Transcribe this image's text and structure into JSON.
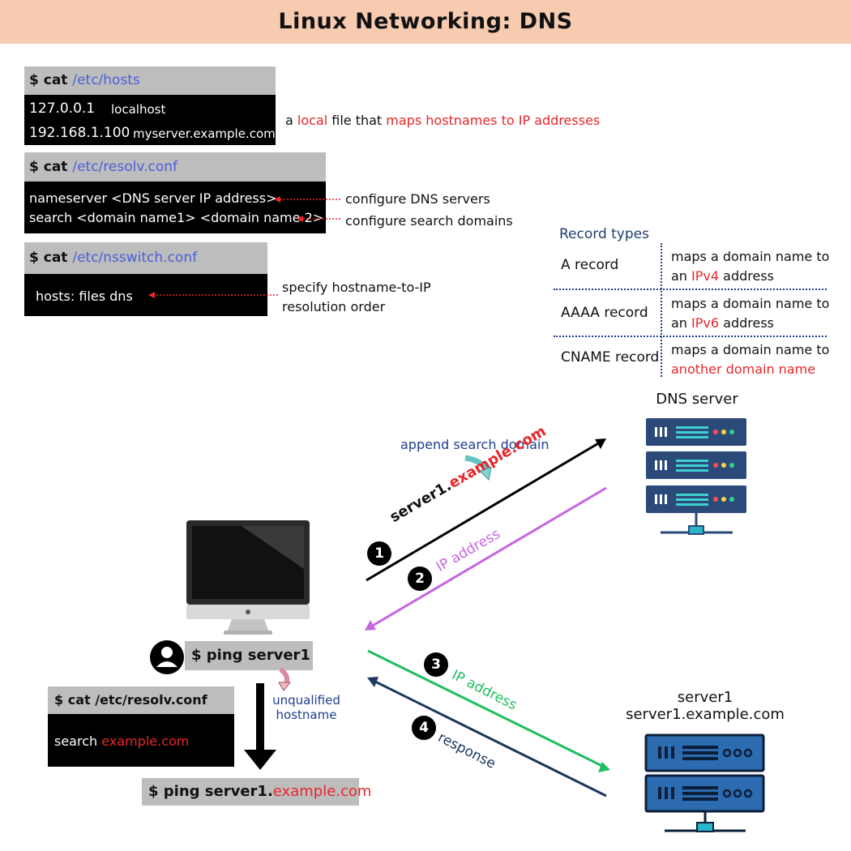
{
  "title": "Linux Networking: DNS",
  "hosts_block": {
    "prompt": "$ cat ",
    "path": "/etc/hosts",
    "rows": [
      {
        "ip": "127.0.0.1",
        "name": "localhost"
      },
      {
        "ip": "192.168.1.100",
        "name": "myserver.example.com"
      }
    ],
    "annotation": {
      "pre": "a ",
      "local": "local",
      "mid": " file that ",
      "maps": "maps hostnames to IP addresses"
    }
  },
  "resolv_block": {
    "prompt": "$ cat ",
    "path": "/etc/resolv.conf",
    "line1": "nameserver <DNS server IP address>",
    "line2": "search <domain name1> <domain name 2>",
    "ann1": "configure DNS servers",
    "ann2": "configure search domains"
  },
  "nsswitch_block": {
    "prompt": "$ cat ",
    "path": "/etc/nsswitch.conf",
    "line": "hosts: files dns",
    "ann_line1": "specify hostname-to-IP",
    "ann_line2": "resolution order"
  },
  "record_types": {
    "title": "Record types",
    "rows": [
      {
        "name": "A record",
        "desc1": "maps a domain name to",
        "desc2_pre": "an ",
        "desc2_hl": "IPv4",
        "desc2_post": " address"
      },
      {
        "name": "AAAA record",
        "desc1": "maps a domain name to",
        "desc2_pre": "an ",
        "desc2_hl": "IPv6",
        "desc2_post": " address"
      },
      {
        "name": "CNAME record",
        "desc1": "maps a domain name to",
        "desc2_pre": "",
        "desc2_hl": "another domain name",
        "desc2_post": ""
      }
    ]
  },
  "flow": {
    "dns_server_label": "DNS server",
    "append_label": "append search domain",
    "step1_host": "server1.",
    "step1_domain": "example.com",
    "step2_label": "IP address",
    "step3_label": "IP address",
    "step4_label": "response",
    "steps": [
      "1",
      "2",
      "3",
      "4"
    ],
    "ping_cmd": "$ ping server1",
    "unqualified_line1": "unqualified",
    "unqualified_line2": "hostname",
    "resolv_head": "$ cat /etc/resolv.conf",
    "resolv_search": "search ",
    "resolv_domain": "example.com",
    "ping_full_pre": "$ ping server1.",
    "ping_full_domain": "example.com",
    "server1_line1": "server1",
    "server1_line2": "server1.example.com"
  },
  "colors": {
    "title_bg": "#f6cbb0",
    "highlight_red": "#e8262b",
    "path_blue": "#4a5fd8",
    "navy": "#1f3d6e",
    "arrow_green": "#1fbf5f",
    "arrow_purple": "#c566e0",
    "arrow_navy": "#1f3560",
    "server_dark": "#2b4a7a",
    "server_blue": "#2d6bb0"
  }
}
